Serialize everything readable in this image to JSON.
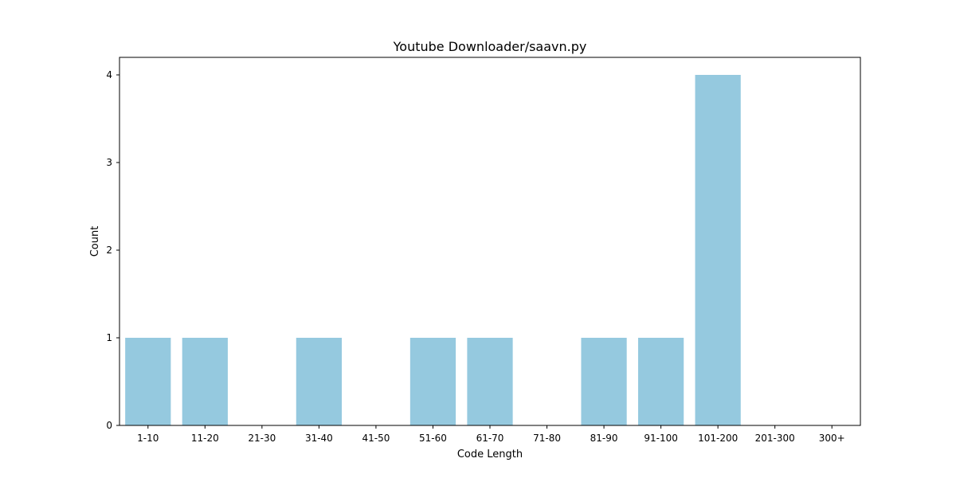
{
  "chart_data": {
    "type": "bar",
    "title": "Youtube Downloader/saavn.py",
    "xlabel": "Code Length",
    "ylabel": "Count",
    "categories": [
      "1-10",
      "11-20",
      "21-30",
      "31-40",
      "41-50",
      "51-60",
      "61-70",
      "71-80",
      "81-90",
      "91-100",
      "101-200",
      "201-300",
      "300+"
    ],
    "values": [
      1,
      1,
      0,
      1,
      0,
      1,
      1,
      0,
      1,
      1,
      4,
      0,
      0
    ],
    "ylim": [
      0,
      4.2
    ],
    "yticks": [
      0,
      1,
      2,
      3,
      4
    ],
    "grid": false,
    "legend": "none",
    "bar_color": "#95c9df"
  }
}
